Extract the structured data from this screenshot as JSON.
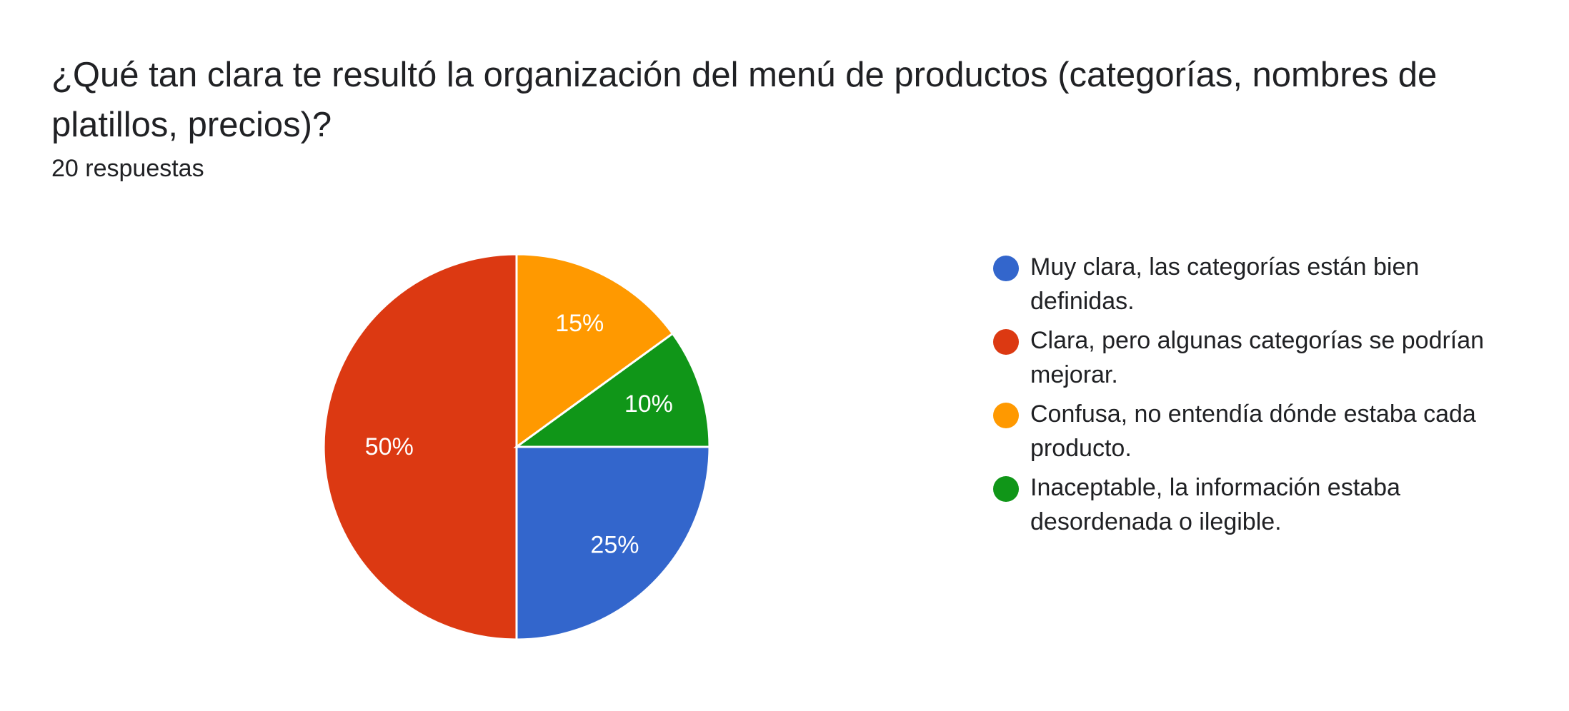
{
  "question": {
    "title": "¿Qué tan clara te resultó la organización del menú de productos (categorías, nombres de platillos, precios)?",
    "response_count": "20 respuestas"
  },
  "chart_data": {
    "type": "pie",
    "title": "¿Qué tan clara te resultó la organización del menú de productos (categorías, nombres de platillos, precios)?",
    "total_responses": 20,
    "slices": [
      {
        "label": "Muy clara, las categorías están bien definidas.",
        "value": 25,
        "display": "25%",
        "color": "#3366cc"
      },
      {
        "label": "Clara, pero algunas categorías se podrían mejorar.",
        "value": 50,
        "display": "50%",
        "color": "#dc3912"
      },
      {
        "label": "Confusa, no entendía dónde estaba cada producto.",
        "value": 15,
        "display": "15%",
        "color": "#ff9900"
      },
      {
        "label": "Inaceptable, la información estaba desordenada o ilegible.",
        "value": 10,
        "display": "10%",
        "color": "#109618"
      }
    ],
    "legend_position": "right"
  }
}
